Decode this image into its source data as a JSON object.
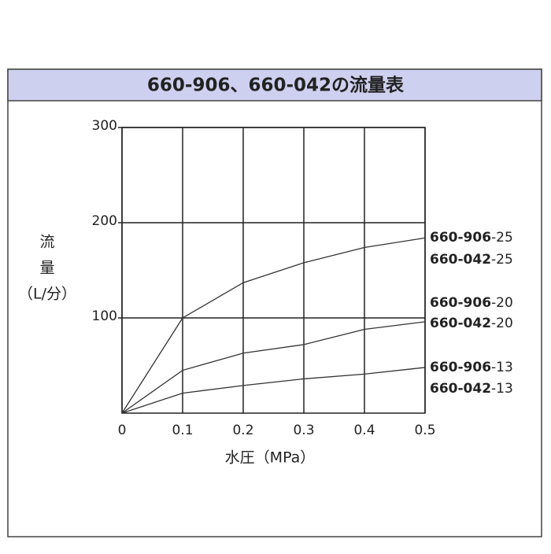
{
  "chart_data": {
    "type": "line",
    "title": "660-906、660-042の流量表",
    "xlabel": "水圧（MPa）",
    "ylabel": [
      "流",
      "量",
      "（L/分）"
    ],
    "x": [
      0,
      0.1,
      0.2,
      0.3,
      0.4,
      0.5
    ],
    "xlim": [
      0,
      0.5
    ],
    "xticks": [
      0,
      0.1,
      0.2,
      0.3,
      0.4,
      0.5
    ],
    "ylim": [
      0,
      300
    ],
    "yticks": [
      100,
      200,
      300
    ],
    "grid": true,
    "series": [
      {
        "names": [
          [
            "660-906",
            "-25"
          ],
          [
            "660-042",
            "-25"
          ]
        ],
        "color": "#333333",
        "values": [
          0,
          100,
          137,
          158,
          174,
          184
        ]
      },
      {
        "names": [
          [
            "660-906",
            "-20"
          ],
          [
            "660-042",
            "-20"
          ]
        ],
        "color": "#333333",
        "values": [
          0,
          45,
          63,
          72,
          88,
          96
        ]
      },
      {
        "names": [
          [
            "660-906",
            "-13"
          ],
          [
            "660-042",
            "-13"
          ]
        ],
        "color": "#333333",
        "values": [
          0,
          21,
          29,
          36,
          41,
          48
        ]
      }
    ]
  }
}
